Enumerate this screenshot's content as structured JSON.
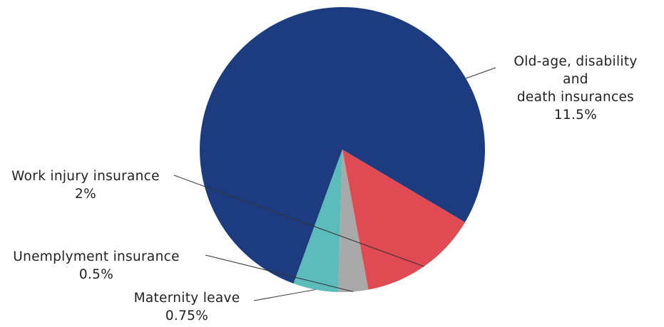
{
  "chart_data": {
    "type": "pie",
    "categories": [
      "Old-age, disability and death insurances",
      "Work injury insurance",
      "Unemplyment insurance",
      "Maternity leave"
    ],
    "values": [
      11.5,
      2,
      0.5,
      0.75
    ],
    "value_labels": [
      "11.5%",
      "2%",
      "0.5%",
      "0.75%"
    ],
    "label_lines": [
      [
        "Old-age, disability and",
        "death insurances"
      ],
      [
        "Work injury insurance"
      ],
      [
        "Unemplyment insurance"
      ],
      [
        "Maternity leave"
      ]
    ],
    "colors": [
      "#1d3c80",
      "#e04a52",
      "#a9a9a9",
      "#5bbcbb"
    ],
    "legend": "none",
    "title": ""
  }
}
